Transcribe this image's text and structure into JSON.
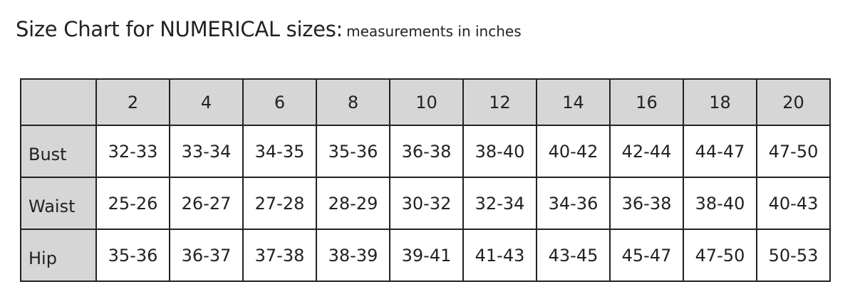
{
  "title": {
    "main": "Size Chart for NUMERICAL sizes:",
    "sub": "measurements in inches"
  },
  "table": {
    "header": [
      "2",
      "4",
      "6",
      "8",
      "10",
      "12",
      "14",
      "16",
      "18",
      "20"
    ],
    "rows": [
      {
        "label": "Bust",
        "values": [
          "32-33",
          "33-34",
          "34-35",
          "35-36",
          "36-38",
          "38-40",
          "40-42",
          "42-44",
          "44-47",
          "47-50"
        ]
      },
      {
        "label": "Waist",
        "values": [
          "25-26",
          "26-27",
          "27-28",
          "28-29",
          "30-32",
          "32-34",
          "34-36",
          "36-38",
          "38-40",
          "40-43"
        ]
      },
      {
        "label": "Hip",
        "values": [
          "35-36",
          "36-37",
          "37-38",
          "38-39",
          "39-41",
          "41-43",
          "43-45",
          "45-47",
          "47-50",
          "50-53"
        ]
      }
    ]
  },
  "colors": {
    "header_bg": "#d6d6d6",
    "border": "#222222"
  }
}
